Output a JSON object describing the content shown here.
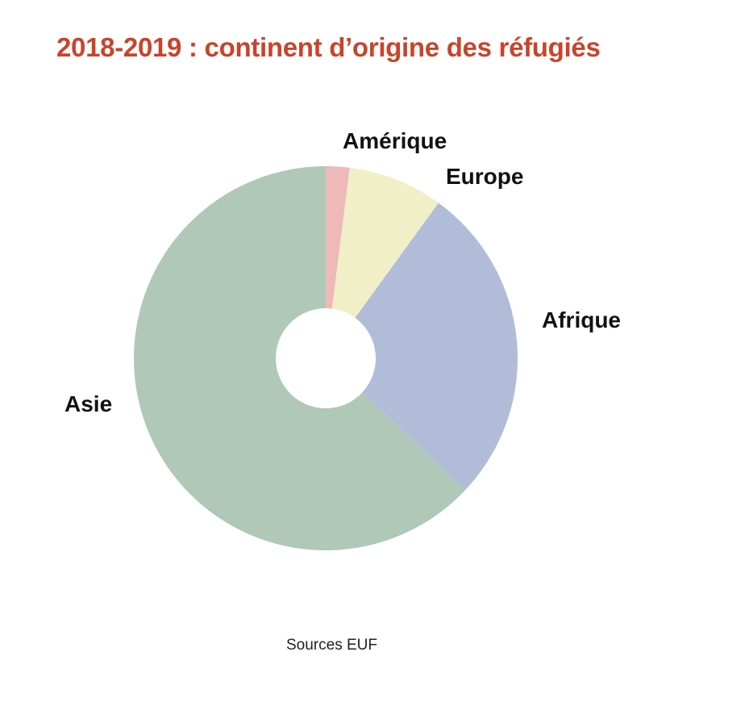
{
  "title": "2018-2019 : continent d’origine des réfugiés",
  "source": "Sources EUF",
  "chart_data": {
    "type": "pie",
    "title": "2018-2019 : continent d’origine des réfugiés",
    "donut": true,
    "legend": "none",
    "categories": [
      "Amérique",
      "Europe",
      "Afrique",
      "Asie"
    ],
    "values": [
      2,
      8,
      27,
      63
    ],
    "colors": [
      "#efb8b9",
      "#f0efc7",
      "#b1bcd8",
      "#afc8b8"
    ]
  }
}
